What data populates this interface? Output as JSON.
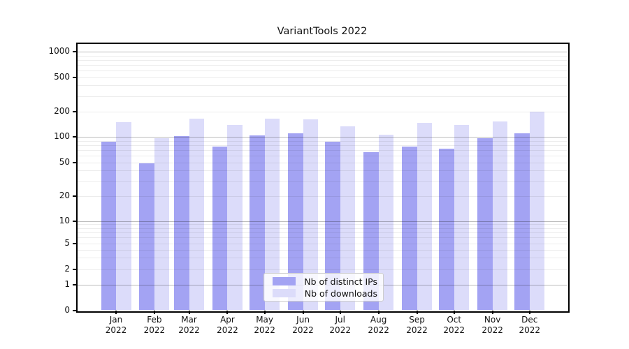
{
  "figure": {
    "title": "VariantTools 2022"
  },
  "chart_data": {
    "type": "bar",
    "title": "VariantTools 2022",
    "categories": [
      "Jan 2022",
      "Feb 2022",
      "Mar 2022",
      "Apr 2022",
      "May 2022",
      "Jun 2022",
      "Jul 2022",
      "Aug 2022",
      "Sep 2022",
      "Oct 2022",
      "Nov 2022",
      "Dec 2022"
    ],
    "series": [
      {
        "name": "Nb of distinct IPs",
        "color": "#a3a3f3",
        "values": [
          88,
          49,
          101,
          76,
          103,
          111,
          87,
          66,
          77,
          72,
          96,
          111
        ]
      },
      {
        "name": "Nb of downloads",
        "color": "#dcdcfa",
        "values": [
          150,
          96,
          164,
          137,
          164,
          160,
          132,
          105,
          145,
          139,
          152,
          197
        ]
      }
    ],
    "xlabel": "",
    "ylabel": "",
    "y_axis": {
      "scale": "symlog",
      "tick_values": [
        0,
        1,
        2,
        5,
        10,
        20,
        50,
        100,
        200,
        500,
        1000
      ],
      "tick_labels": [
        "0",
        "1",
        "2",
        "5",
        "10",
        "20",
        "50",
        "100",
        "200",
        "500",
        "1000"
      ],
      "ylim": [
        0,
        1300
      ]
    },
    "grid": "both, horizontal only, drawn over bars",
    "legend": {
      "position": "inside lower center",
      "entries": [
        "Nb of distinct IPs",
        "Nb of downloads"
      ]
    }
  }
}
